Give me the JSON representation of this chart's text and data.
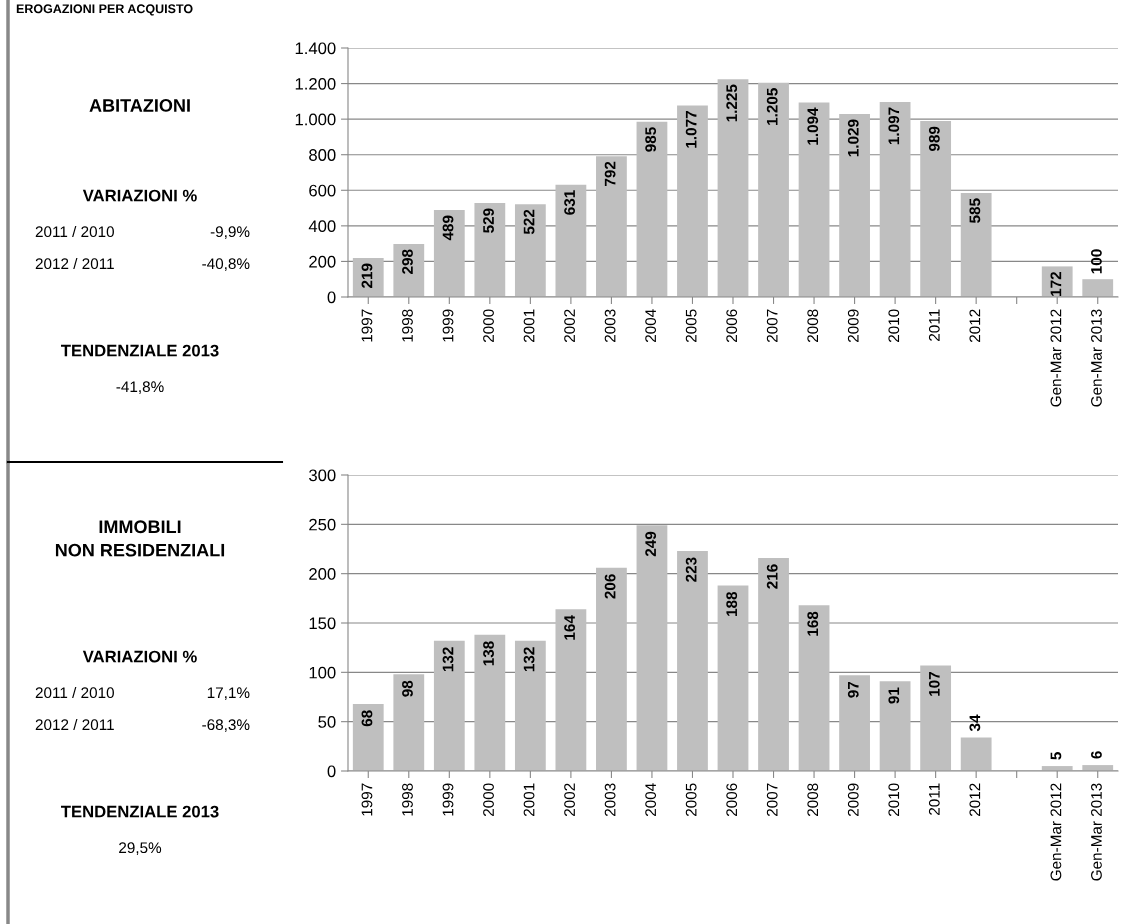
{
  "chart_data": [
    {
      "type": "bar",
      "categories": [
        "1997",
        "1998",
        "1999",
        "2000",
        "2001",
        "2002",
        "2003",
        "2004",
        "2005",
        "2006",
        "2007",
        "2008",
        "2009",
        "2010",
        "2011",
        "2012",
        null,
        "Gen-Mar 2012",
        "Gen-Mar 2013"
      ],
      "values": [
        219,
        298,
        489,
        529,
        522,
        631,
        792,
        985,
        1077,
        1225,
        1205,
        1094,
        1029,
        1097,
        989,
        585,
        null,
        172,
        100
      ],
      "value_labels": [
        "219",
        "298",
        "489",
        "529",
        "522",
        "631",
        "792",
        "985",
        "1.077",
        "1.225",
        "1.205",
        "1.094",
        "1.029",
        "1.097",
        "989",
        "585",
        null,
        "172",
        "100"
      ],
      "color": "#bfbfbf",
      "ylim": [
        0,
        1400
      ],
      "yticks": [
        0,
        200,
        400,
        600,
        800,
        {
          "value": 1000,
          "label": "1.000"
        },
        {
          "value": 1200,
          "label": "1.200"
        },
        {
          "value": 1400,
          "label": "1.400"
        }
      ],
      "grid": "y",
      "annotations": [
        "EROGAZIONI PER ACQUISTO",
        "ABITAZIONI",
        "VARIAZIONI %",
        "2011 / 2010",
        "-9,9%",
        "2012 / 2011",
        "-40,8%",
        "TENDENZIALE 2013",
        "-41,8%"
      ]
    },
    {
      "type": "bar",
      "categories": [
        "1997",
        "1998",
        "1999",
        "2000",
        "2001",
        "2002",
        "2003",
        "2004",
        "2005",
        "2006",
        "2007",
        "2008",
        "2009",
        "2010",
        "2011",
        "2012",
        null,
        "Gen-Mar 2012",
        "Gen-Mar 2013"
      ],
      "values": [
        68,
        98,
        132,
        138,
        132,
        164,
        206,
        249,
        223,
        188,
        216,
        168,
        97,
        91,
        107,
        34,
        null,
        5,
        6
      ],
      "data_labels": true,
      "color": "#bfbfbf",
      "ylim": [
        0,
        300
      ],
      "yticks": [
        0,
        50,
        100,
        150,
        200,
        250,
        300
      ],
      "grid": "y",
      "annotations": [
        "IMMOBILI\nNON RESIDENZIALI",
        "VARIAZIONI %",
        "2011 / 2010",
        "17,1%",
        "2012 / 2011",
        "-68,3%",
        "TENDENZIALE 2013",
        "29,5%"
      ]
    }
  ]
}
